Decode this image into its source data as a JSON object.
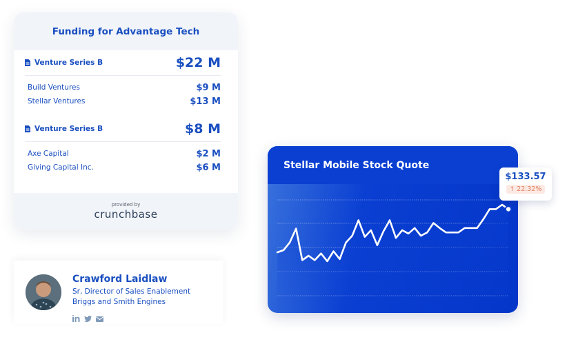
{
  "funding": {
    "title": "Funding for Advantage Tech",
    "rounds": [
      {
        "name": "Venture Series B",
        "total": "$22 M",
        "investors": [
          {
            "name": "Build Ventures",
            "amount": "$9 M"
          },
          {
            "name": "Stellar Ventures",
            "amount": "$13 M"
          }
        ]
      },
      {
        "name": "Venture Series B",
        "total": "$8 M",
        "investors": [
          {
            "name": "Axe Capital",
            "amount": "$2 M"
          },
          {
            "name": "Giving Capital Inc.",
            "amount": "$6 M"
          }
        ]
      }
    ],
    "provided_by": "provided by",
    "brand": "crunchbase"
  },
  "contact": {
    "name": "Crawford Laidlaw",
    "title": "Sr, Director of Sales Enablement",
    "company": "Briggs and Smith Engines",
    "social_icons": [
      "linkedin-icon",
      "twitter-icon",
      "email-icon"
    ]
  },
  "stock": {
    "title": "Stellar Mobile Stock Quote",
    "price": "$133.57",
    "change": "22.32%",
    "change_icon": "arrow-up-icon",
    "colors": {
      "card": "#0a3fd2",
      "line": "#ffffff",
      "change_text": "#e2805f",
      "change_bg": "#fde9e4",
      "accent": "#1a4fc0"
    },
    "series": [
      22,
      26,
      40,
      65,
      8,
      16,
      8,
      20,
      6,
      24,
      10,
      40,
      52,
      80,
      50,
      62,
      35,
      60,
      80,
      48,
      62,
      56,
      66,
      52,
      58,
      75,
      66,
      58,
      58,
      58,
      66,
      66,
      66,
      82,
      100,
      100,
      108,
      100
    ]
  }
}
